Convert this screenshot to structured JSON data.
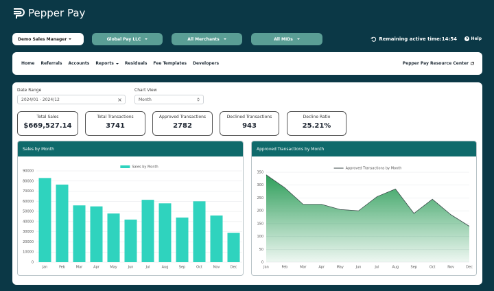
{
  "header": {
    "logo": "Pepper Pay",
    "role": "Demo Sales Manager",
    "filters": [
      "Global Pay LLC",
      "All Merchants",
      "All MIDs"
    ],
    "session_label": "Remaining active time:",
    "session_time": "14:54",
    "help": "Help"
  },
  "nav": {
    "items": [
      "Home",
      "Referrals",
      "Accounts",
      "Reports",
      "Residuals",
      "Fee Templates",
      "Developers"
    ],
    "resource_link": "Pepper Pay Resource Center"
  },
  "controls": {
    "date_range_label": "Date Range",
    "date_range_value": "2024/01 - 2024/12",
    "chart_view_label": "Chart View",
    "chart_view_value": "Month"
  },
  "cards": [
    {
      "label": "Total Sales",
      "value": "$669,527.14"
    },
    {
      "label": "Total Transactions",
      "value": "3741"
    },
    {
      "label": "Approved Transactions",
      "value": "2782"
    },
    {
      "label": "Declined Transactions",
      "value": "943"
    },
    {
      "label": "Decline Ratio",
      "value": "25.21%"
    }
  ],
  "chart_data": [
    {
      "type": "bar",
      "title": "Sales by Month",
      "categories": [
        "Jan",
        "Feb",
        "Mar",
        "Apr",
        "May",
        "Jun",
        "Jul",
        "Aug",
        "Sep",
        "Oct",
        "Nov",
        "Dec"
      ],
      "series": [
        {
          "name": "Sales by Month",
          "color": "#2fd3be",
          "values": [
            83000,
            76500,
            56000,
            55000,
            48000,
            42000,
            61500,
            58000,
            44000,
            60000,
            46000,
            29000
          ]
        }
      ],
      "ylim": [
        0,
        90000
      ],
      "yticks": [
        0,
        10000,
        20000,
        30000,
        40000,
        50000,
        60000,
        70000,
        80000,
        90000
      ],
      "grid": true
    },
    {
      "type": "area",
      "title": "Approved Transactions by Month",
      "categories": [
        "Jan",
        "Feb",
        "Mar",
        "Apr",
        "May",
        "Jun",
        "Jul",
        "Aug",
        "Sep",
        "Oct",
        "Nov",
        "Dec"
      ],
      "series": [
        {
          "name": "Approved Transactions by Month",
          "color": "#3b4a4a",
          "fill": "#2e9e5a",
          "values": [
            340,
            290,
            225,
            225,
            205,
            200,
            255,
            285,
            190,
            245,
            185,
            140
          ]
        }
      ],
      "ylim": [
        0,
        350
      ],
      "yticks": [
        0,
        50,
        100,
        150,
        200,
        250,
        300,
        350
      ],
      "grid": true
    }
  ]
}
